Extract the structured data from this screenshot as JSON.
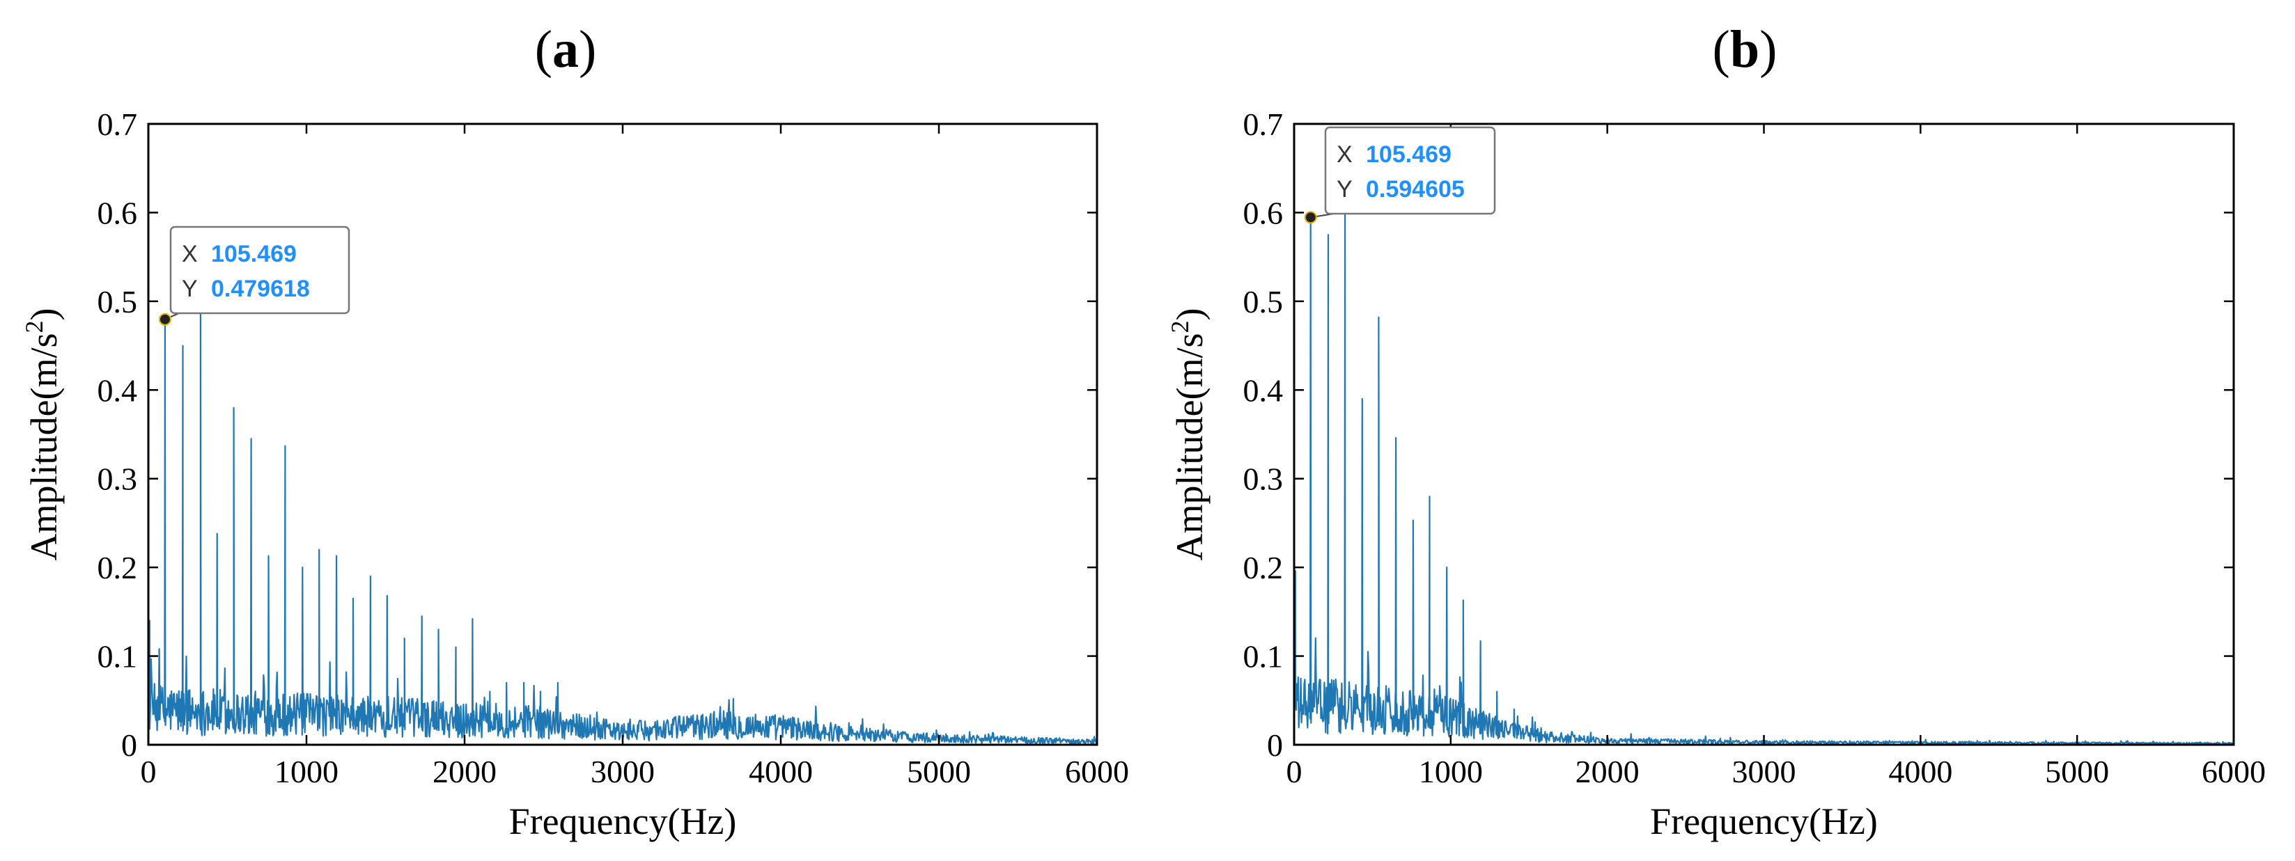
{
  "chart_data": [
    {
      "type": "line",
      "panel_label": "a",
      "xlabel": "Frequency(Hz)",
      "ylabel": "Amplitude(m/s",
      "ylabel_sup": "2",
      "ylabel_close": ")",
      "xlim": [
        0,
        6000
      ],
      "ylim": [
        0,
        0.7
      ],
      "xticks": [
        0,
        1000,
        2000,
        3000,
        4000,
        5000,
        6000
      ],
      "xtick_labels": [
        "0",
        "1000",
        "2000",
        "3000",
        "4000",
        "5000",
        "6000"
      ],
      "yticks": [
        0,
        0.1,
        0.2,
        0.3,
        0.4,
        0.5,
        0.6,
        0.7
      ],
      "ytick_labels": [
        "0",
        "0.1",
        "0.2",
        "0.3",
        "0.4",
        "0.5",
        "0.6",
        "0.7"
      ],
      "line_color": "#1f77b4",
      "peaks": [
        {
          "x": 105.469,
          "y": 0.4796
        },
        {
          "x": 218,
          "y": 0.45
        },
        {
          "x": 330,
          "y": 0.49
        },
        {
          "x": 435,
          "y": 0.238
        },
        {
          "x": 540,
          "y": 0.38
        },
        {
          "x": 650,
          "y": 0.345
        },
        {
          "x": 760,
          "y": 0.213
        },
        {
          "x": 865,
          "y": 0.337
        },
        {
          "x": 975,
          "y": 0.2
        },
        {
          "x": 1080,
          "y": 0.22
        },
        {
          "x": 1190,
          "y": 0.213
        },
        {
          "x": 1295,
          "y": 0.165
        },
        {
          "x": 1405,
          "y": 0.19
        },
        {
          "x": 1510,
          "y": 0.168
        },
        {
          "x": 1620,
          "y": 0.12
        },
        {
          "x": 1730,
          "y": 0.145
        },
        {
          "x": 1835,
          "y": 0.13
        },
        {
          "x": 1945,
          "y": 0.11
        },
        {
          "x": 2050,
          "y": 0.142
        },
        {
          "x": 2160,
          "y": 0.06
        },
        {
          "x": 2265,
          "y": 0.07
        },
        {
          "x": 2375,
          "y": 0.07
        },
        {
          "x": 2480,
          "y": 0.06
        },
        {
          "x": 2590,
          "y": 0.07
        },
        {
          "x": 3700,
          "y": 0.052
        }
      ],
      "noise_profile": [
        {
          "x": 0,
          "y": 0.045
        },
        {
          "x": 500,
          "y": 0.04
        },
        {
          "x": 1500,
          "y": 0.035
        },
        {
          "x": 2500,
          "y": 0.028
        },
        {
          "x": 3000,
          "y": 0.016
        },
        {
          "x": 3600,
          "y": 0.025
        },
        {
          "x": 4000,
          "y": 0.022
        },
        {
          "x": 4500,
          "y": 0.013
        },
        {
          "x": 5000,
          "y": 0.008
        },
        {
          "x": 6000,
          "y": 0.004
        }
      ],
      "datatip": {
        "x_label": "X",
        "x_value": "105.469",
        "y_label": "Y",
        "y_value": "0.479618",
        "point": {
          "x": 105.469,
          "y": 0.479618
        }
      }
    },
    {
      "type": "line",
      "panel_label": "b",
      "xlabel": "Frequency(Hz)",
      "ylabel": "Amplitude(m/s",
      "ylabel_sup": "2",
      "ylabel_close": ")",
      "xlim": [
        0,
        6000
      ],
      "ylim": [
        0,
        0.7
      ],
      "xticks": [
        0,
        1000,
        2000,
        3000,
        4000,
        5000,
        6000
      ],
      "xtick_labels": [
        "0",
        "1000",
        "2000",
        "3000",
        "4000",
        "5000",
        "6000"
      ],
      "yticks": [
        0,
        0.1,
        0.2,
        0.3,
        0.4,
        0.5,
        0.6,
        0.7
      ],
      "ytick_labels": [
        "0",
        "0.1",
        "0.2",
        "0.3",
        "0.4",
        "0.5",
        "0.6",
        "0.7"
      ],
      "line_color": "#1f77b4",
      "peaks": [
        {
          "x": 105.469,
          "y": 0.5946
        },
        {
          "x": 218,
          "y": 0.575
        },
        {
          "x": 325,
          "y": 0.605
        },
        {
          "x": 435,
          "y": 0.39
        },
        {
          "x": 540,
          "y": 0.482
        },
        {
          "x": 650,
          "y": 0.346
        },
        {
          "x": 760,
          "y": 0.253
        },
        {
          "x": 865,
          "y": 0.28
        },
        {
          "x": 975,
          "y": 0.2
        },
        {
          "x": 1080,
          "y": 0.163
        },
        {
          "x": 1190,
          "y": 0.117
        },
        {
          "x": 1295,
          "y": 0.06
        },
        {
          "x": 1405,
          "y": 0.04
        }
      ],
      "noise_profile": [
        {
          "x": 0,
          "y": 0.05
        },
        {
          "x": 500,
          "y": 0.045
        },
        {
          "x": 1000,
          "y": 0.035
        },
        {
          "x": 1300,
          "y": 0.02
        },
        {
          "x": 1600,
          "y": 0.01
        },
        {
          "x": 2000,
          "y": 0.005
        },
        {
          "x": 3000,
          "y": 0.003
        },
        {
          "x": 6000,
          "y": 0.0015
        }
      ],
      "datatip": {
        "x_label": "X",
        "x_value": "105.469",
        "y_label": "Y",
        "y_value": "0.594605",
        "point": {
          "x": 105.469,
          "y": 0.594605
        }
      }
    }
  ]
}
